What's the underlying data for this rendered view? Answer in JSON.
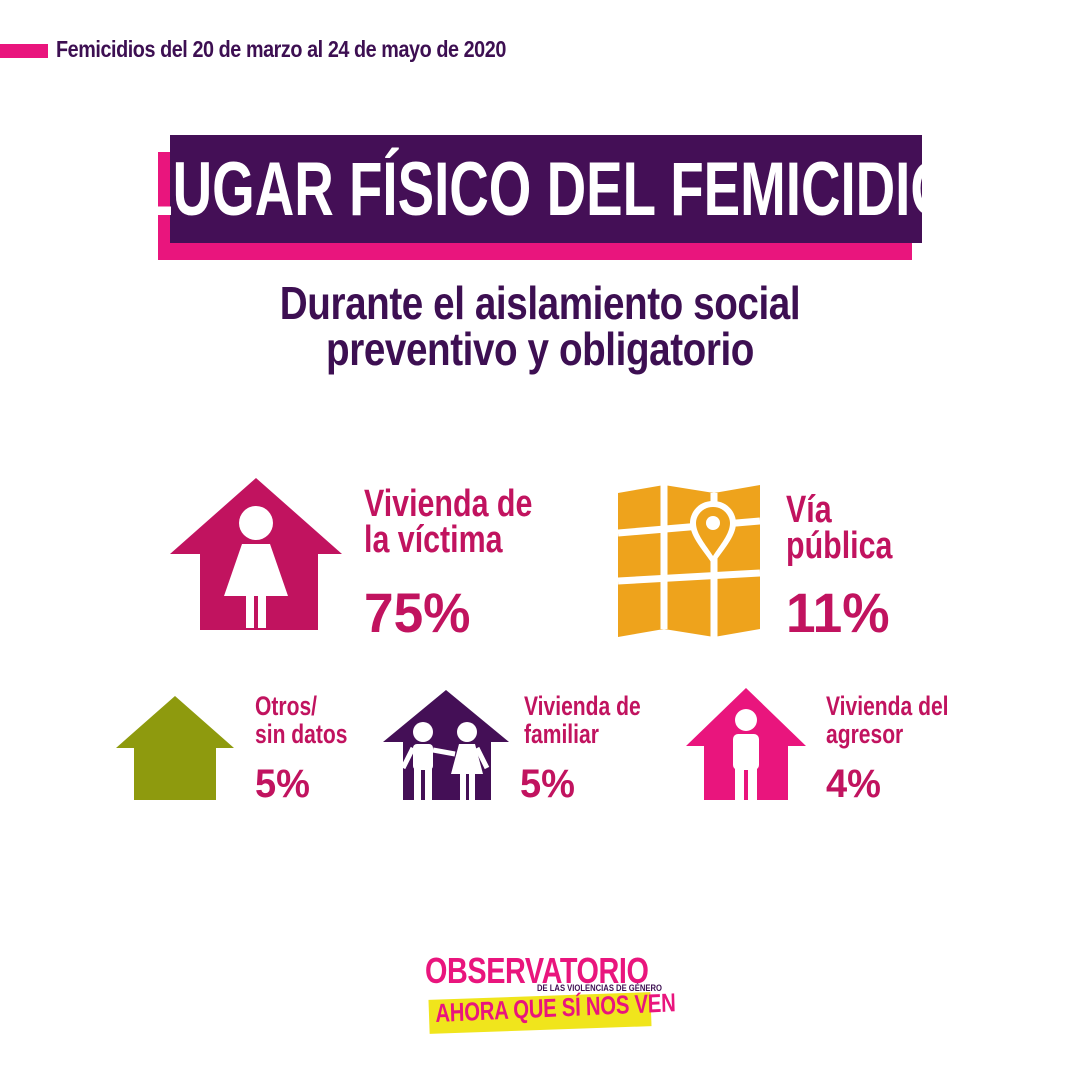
{
  "header": {
    "caption": "Femicidios del 20 de marzo al 24 de mayo de 2020"
  },
  "title": "LUGAR FÍSICO DEL FEMICIDIO",
  "subtitle": {
    "line1": "Durante el aislamiento social",
    "line2": "preventivo y obligatorio"
  },
  "items": [
    {
      "line1": "Vivienda de",
      "line2": "la víctima",
      "percent": "75%",
      "icon": "house-woman-icon",
      "color": "#c1135f"
    },
    {
      "line1": "Vía",
      "line2": "pública",
      "percent": "11%",
      "icon": "map-pin-icon",
      "color": "#eea31c"
    },
    {
      "line1": "Otros/",
      "line2": "sin datos",
      "percent": "5%",
      "icon": "house-icon",
      "color": "#8e9a0e"
    },
    {
      "line1": "Vivienda de",
      "line2": "familiar",
      "percent": "5%",
      "icon": "house-family-icon",
      "color": "#440f56"
    },
    {
      "line1": "Vivienda del",
      "line2": "agresor",
      "percent": "4%",
      "icon": "house-man-icon",
      "color": "#e9157d"
    }
  ],
  "logo": {
    "top": "OBSERVATORIO",
    "sub": "DE LAS VIOLENCIAS DE GÉNERO",
    "bottom": "AHORA QUE SÍ NOS VEN"
  },
  "colors": {
    "pink": "#e9157d",
    "magenta": "#c1135f",
    "purple": "#440f56",
    "dark_purple": "#3d0f52",
    "yellow": "#f0e51c"
  }
}
